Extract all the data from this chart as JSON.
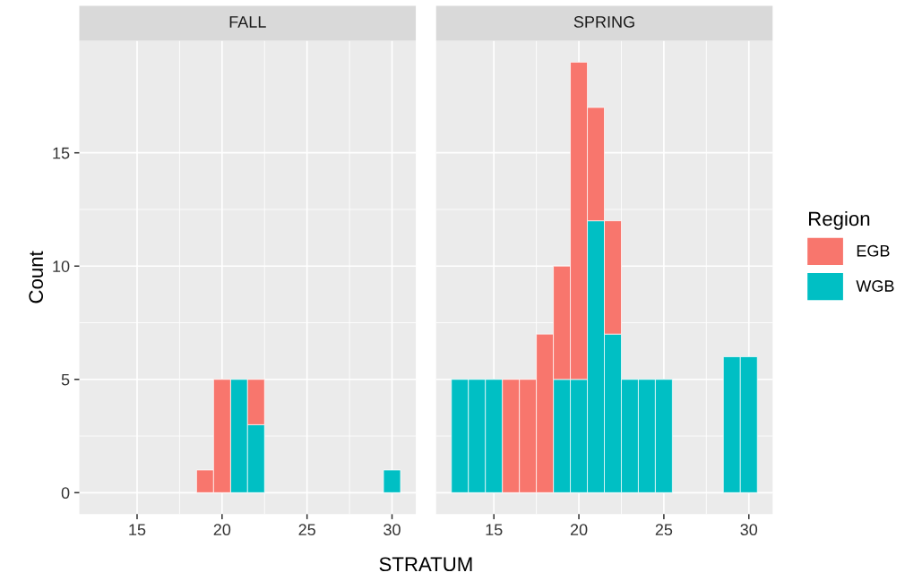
{
  "chart_data": [
    {
      "type": "bar",
      "title": "FALL",
      "xlabel": "STRATUM",
      "ylabel": "Count",
      "stacked": true,
      "grid": true,
      "legend": false,
      "x": [
        19,
        20,
        21,
        22,
        30
      ],
      "series": [
        {
          "color": "#00bfc4",
          "values": [
            null,
            null,
            5,
            3,
            1
          ]
        },
        {
          "color": "#f8766d",
          "values": [
            1,
            5,
            null,
            2,
            null
          ]
        }
      ],
      "xlim": [
        11.6,
        31.4
      ],
      "xticks": [
        15,
        20,
        25,
        30
      ],
      "ylim": [
        -0.95,
        19.95
      ],
      "yticks": [
        0,
        5,
        10,
        15
      ]
    },
    {
      "type": "bar",
      "title": "SPRING",
      "legend_title": "Region",
      "stacked": true,
      "grid": true,
      "legend": "right",
      "tick_labels": "x",
      "x": [
        13,
        14,
        15,
        16,
        17,
        18,
        19,
        20,
        21,
        22,
        23,
        24,
        25,
        29,
        30
      ],
      "series": [
        {
          "name": "WGB",
          "color": "#00bfc4",
          "values": [
            5,
            5,
            5,
            null,
            null,
            null,
            5,
            5,
            12,
            7,
            5,
            5,
            5,
            6,
            6
          ]
        },
        {
          "name": "EGB",
          "color": "#f8766d",
          "values": [
            null,
            null,
            null,
            5,
            5,
            7,
            5,
            14,
            5,
            5,
            null,
            null,
            null,
            null,
            null
          ]
        }
      ],
      "xlim": [
        11.6,
        31.4
      ],
      "xticks": [
        15,
        20,
        25,
        30
      ],
      "ylim": [
        -0.95,
        19.95
      ],
      "yticks": [
        0,
        5,
        10,
        15
      ]
    }
  ]
}
